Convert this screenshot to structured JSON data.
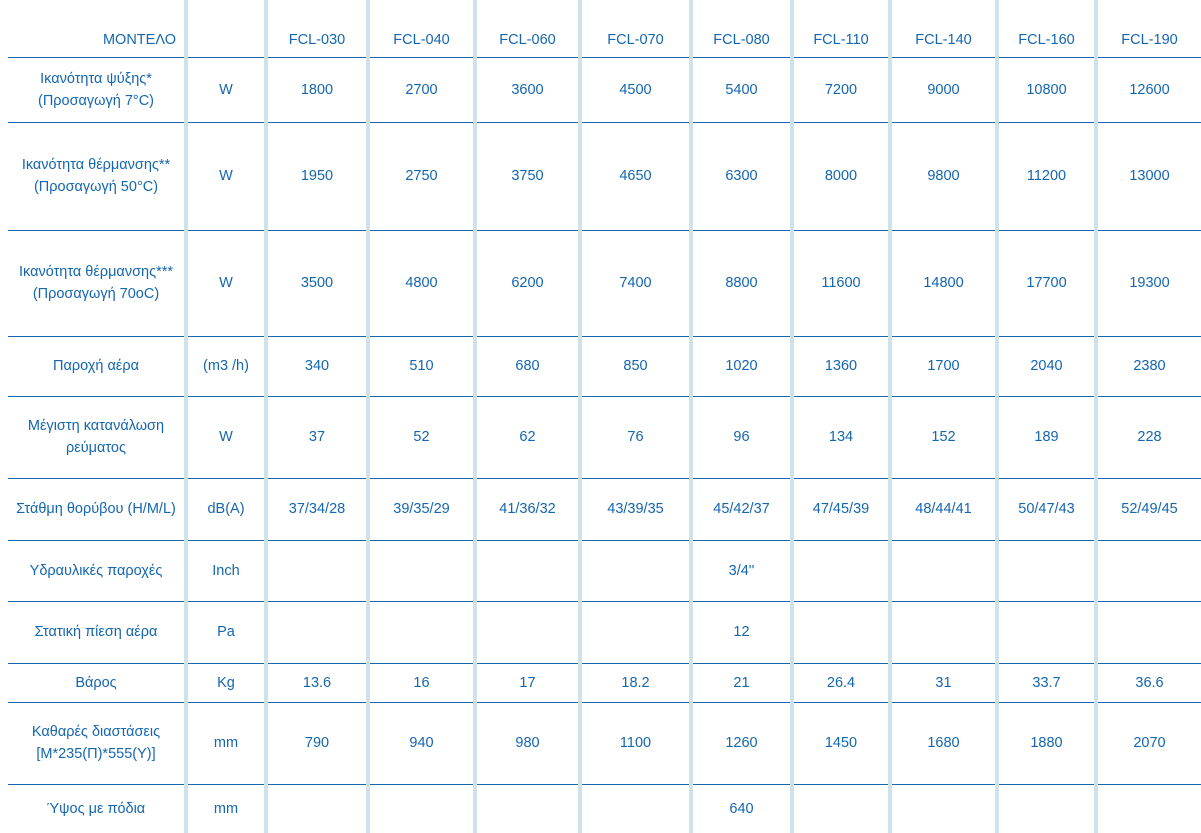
{
  "header": {
    "label": "ΜΟΝΤΕΛΟ",
    "unit": "",
    "models": [
      "FCL-030",
      "FCL-040",
      "FCL-060",
      "FCL-070",
      "FCL-080",
      "FCL-110",
      "FCL-140",
      "FCL-160",
      "FCL-190"
    ]
  },
  "rows": [
    {
      "label": "Ικανότητα ψύξης* (Προσαγωγή 7°C)",
      "unit": "W",
      "values": [
        "1800",
        "2700",
        "3600",
        "4500",
        "5400",
        "7200",
        "9000",
        "10800",
        "12600"
      ]
    },
    {
      "label": "Ικανότητα θέρμανσης** (Προσαγωγή 50°C)",
      "unit": "W",
      "values": [
        "1950",
        "2750",
        "3750",
        "4650",
        "6300",
        "8000",
        "9800",
        "11200",
        "13000"
      ]
    },
    {
      "label": "Ικανότητα θέρμανσης*** (Προσαγωγή 70oC)",
      "unit": "W",
      "values": [
        "3500",
        "4800",
        "6200",
        "7400",
        "8800",
        "11600",
        "14800",
        "17700",
        "19300"
      ]
    },
    {
      "label": "Παροχή αέρα",
      "unit": "(m3 /h)",
      "values": [
        "340",
        "510",
        "680",
        "850",
        "1020",
        "1360",
        "1700",
        "2040",
        "2380"
      ]
    },
    {
      "label": "Μέγιστη κατανάλωση ρεύματος",
      "unit": "W",
      "values": [
        "37",
        "52",
        "62",
        "76",
        "96",
        "134",
        "152",
        "189",
        "228"
      ]
    },
    {
      "label": "Στάθμη θορύβου (H/M/L)",
      "unit": "dB(A)",
      "values": [
        "37/34/28",
        "39/35/29",
        "41/36/32",
        "43/39/35",
        "45/42/37",
        "47/45/39",
        "48/44/41",
        "50/47/43",
        "52/49/45"
      ]
    },
    {
      "label": "Υδραυλικές παροχές",
      "unit": "Inch",
      "values": [
        "",
        "",
        "",
        "",
        "3/4''",
        "",
        "",
        "",
        ""
      ]
    },
    {
      "label": "Στατική πίεση αέρα",
      "unit": "Pa",
      "values": [
        "",
        "",
        "",
        "",
        "12",
        "",
        "",
        "",
        ""
      ]
    },
    {
      "label": "Βάρος",
      "unit": "Kg",
      "values": [
        "13.6",
        "16",
        "17",
        "18.2",
        "21",
        "26.4",
        "31",
        "33.7",
        "36.6"
      ]
    },
    {
      "label": "Καθαρές διαστάσεις [M*235(Π)*555(Y)]",
      "unit": "mm",
      "values": [
        "790",
        "940",
        "980",
        "1100",
        "1260",
        "1450",
        "1680",
        "1880",
        "2070"
      ]
    },
    {
      "label": "Ύψος με πόδια",
      "unit": "mm",
      "values": [
        "",
        "",
        "",
        "",
        "640",
        "",
        "",
        "",
        ""
      ]
    }
  ]
}
